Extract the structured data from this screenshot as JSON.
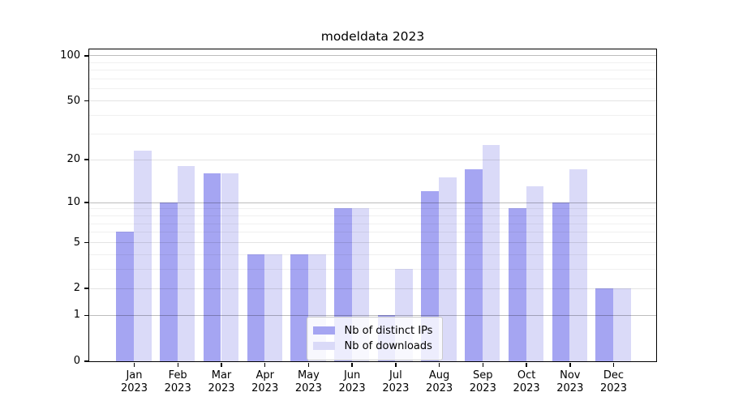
{
  "chart_data": {
    "type": "bar",
    "title": "modeldata 2023",
    "xlabel": "",
    "ylabel": "",
    "categories": [
      "Jan",
      "Feb",
      "Mar",
      "Apr",
      "May",
      "Jun",
      "Jul",
      "Aug",
      "Sep",
      "Oct",
      "Nov",
      "Dec"
    ],
    "year": "2023",
    "series": [
      {
        "name": "Nb of distinct IPs",
        "color": "#a5a5f2",
        "values": [
          6,
          10,
          16,
          4,
          4,
          9,
          1,
          12,
          17,
          9,
          10,
          2
        ]
      },
      {
        "name": "Nb of downloads",
        "color": "#dadaf8",
        "values": [
          23,
          18,
          16,
          4,
          4,
          9,
          3,
          15,
          25,
          13,
          17,
          2
        ]
      }
    ],
    "yscale": "log1p",
    "ylim": [
      0,
      110
    ],
    "ytick_values": [
      100,
      50,
      20,
      10,
      5,
      2,
      1,
      0
    ],
    "grid": {
      "on": true,
      "drawn_above_bars": true,
      "major_lines": [
        1,
        10,
        100
      ],
      "sub_lines": [
        2,
        5,
        20,
        50
      ],
      "minor_lines": [
        3,
        4,
        6,
        7,
        8,
        9,
        30,
        40,
        60,
        70,
        80,
        90
      ],
      "major_color": "rgba(0,0,0,0.26)",
      "sub_color": "rgba(0,0,0,0.11)",
      "minor_color": "rgba(0,0,0,0.06)"
    },
    "legend": {
      "position": "lower-center-inside",
      "entries": [
        "Nb of distinct IPs",
        "Nb of downloads"
      ]
    }
  }
}
